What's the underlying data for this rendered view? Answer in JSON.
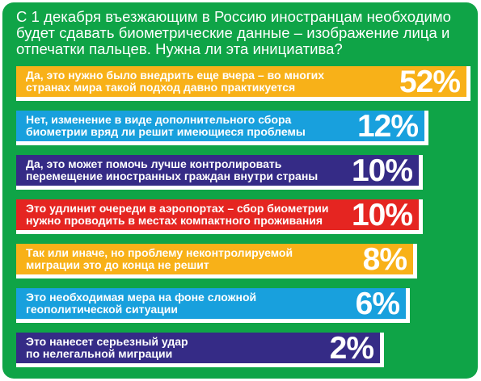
{
  "chart_data": {
    "type": "bar",
    "orientation": "horizontal",
    "title": "С 1 декабря въезжающим в Россию иностранцам необходимо будет сдавать биометрические данные – изображение лица и отпечатки пальцев. Нужна ли эта инициатива?",
    "categories": [
      "Да, это нужно было внедрить еще вчера – во многих\nстранах мира такой подход давно практикуется",
      "Нет, изменение в виде дополнительного сбора\nбиометрии вряд ли решит имеющиеся проблемы",
      "Да, это может помочь лучше контролировать\nперемещение иностранных граждан внутри страны",
      "Это удлинит очереди в аэропортах – сбор биометрии\nнужно проводить в местах компактного проживания",
      "Так или иначе, но проблему неконтролируемой\nмиграции это до конца не решит",
      "Это необходимая мера на фоне сложной\nгеополитической ситуации",
      "Это нанесет серьезный удар\nпо нелегальной миграции"
    ],
    "values": [
      52,
      12,
      10,
      10,
      8,
      6,
      2
    ],
    "value_labels": [
      "52%",
      "12%",
      "10%",
      "10%",
      "8%",
      "6%",
      "2%"
    ],
    "colors": [
      "#f8b118",
      "#18a0dd",
      "#352b86",
      "#e52521",
      "#f8b118",
      "#18a0dd",
      "#352b86"
    ]
  },
  "background_color": "#0fa447",
  "text_color": "#ffffff"
}
